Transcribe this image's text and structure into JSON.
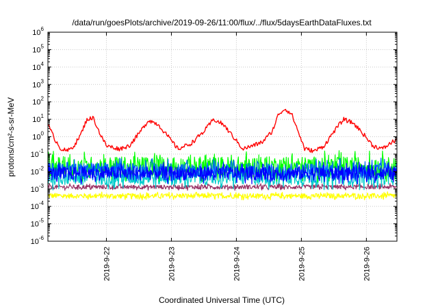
{
  "chart_data": {
    "type": "line",
    "title": "/data/run/goesPlots/archive/2019-09-26/11:00/flux/../flux/5daysEarthDataFluxes.txt",
    "xlabel": "Coordinated Universal Time (UTC)",
    "ylabel": "protons/cm²-s-sr-MeV",
    "yscale": "log",
    "ylim": [
      -6,
      6
    ],
    "xlim": [
      21.1,
      26.47
    ],
    "grid": true,
    "x_ticks": [
      {
        "value": 22,
        "label": "2019-9-22"
      },
      {
        "value": 23,
        "label": "2019-9-23"
      },
      {
        "value": 24,
        "label": "2019-9-24"
      },
      {
        "value": 25,
        "label": "2019-9-25"
      },
      {
        "value": 26,
        "label": "2019-9-26"
      }
    ],
    "y_ticks": [
      -6,
      -5,
      -4,
      -3,
      -2,
      -1,
      0,
      1,
      2,
      3,
      4,
      5,
      6
    ],
    "series": [
      {
        "color": "#ff0000",
        "kind": "smooth",
        "x": [
          21.1,
          21.2,
          21.3,
          21.4,
          21.5,
          21.6,
          21.7,
          21.8,
          21.9,
          22.0,
          22.2,
          22.35,
          22.5,
          22.65,
          22.8,
          22.95,
          23.1,
          23.3,
          23.5,
          23.65,
          23.8,
          23.95,
          24.1,
          24.25,
          24.4,
          24.55,
          24.65,
          24.75,
          24.85,
          24.95,
          25.05,
          25.2,
          25.35,
          25.5,
          25.65,
          25.8,
          25.95,
          26.1,
          26.25,
          26.4,
          26.47
        ],
        "y": [
          5,
          0.8,
          0.2,
          0.15,
          0.3,
          1.2,
          10,
          12,
          1.5,
          0.3,
          0.2,
          0.3,
          1.5,
          9,
          5,
          1,
          0.2,
          0.4,
          2,
          10,
          5,
          1,
          0.2,
          0.3,
          0.5,
          2,
          20,
          40,
          20,
          2,
          0.2,
          0.15,
          0.3,
          2,
          10,
          6,
          1.5,
          0.3,
          0.2,
          0.5,
          0.7
        ],
        "noise": 0.25
      },
      {
        "color": "#00ff00",
        "kind": "noise",
        "center": 0.02,
        "spread": 0.7
      },
      {
        "color": "#00cccc",
        "kind": "noise",
        "center": 0.005,
        "spread": 0.6
      },
      {
        "color": "#0066ff",
        "kind": "noise",
        "center": 0.012,
        "spread": 0.55
      },
      {
        "color": "#0000ff",
        "kind": "noise",
        "center": 0.008,
        "spread": 0.5
      },
      {
        "color": "#993366",
        "kind": "noise",
        "center": 0.0013,
        "spread": 0.15
      },
      {
        "color": "#ffff00",
        "kind": "noise",
        "center": 0.0004,
        "spread": 0.18
      }
    ]
  }
}
